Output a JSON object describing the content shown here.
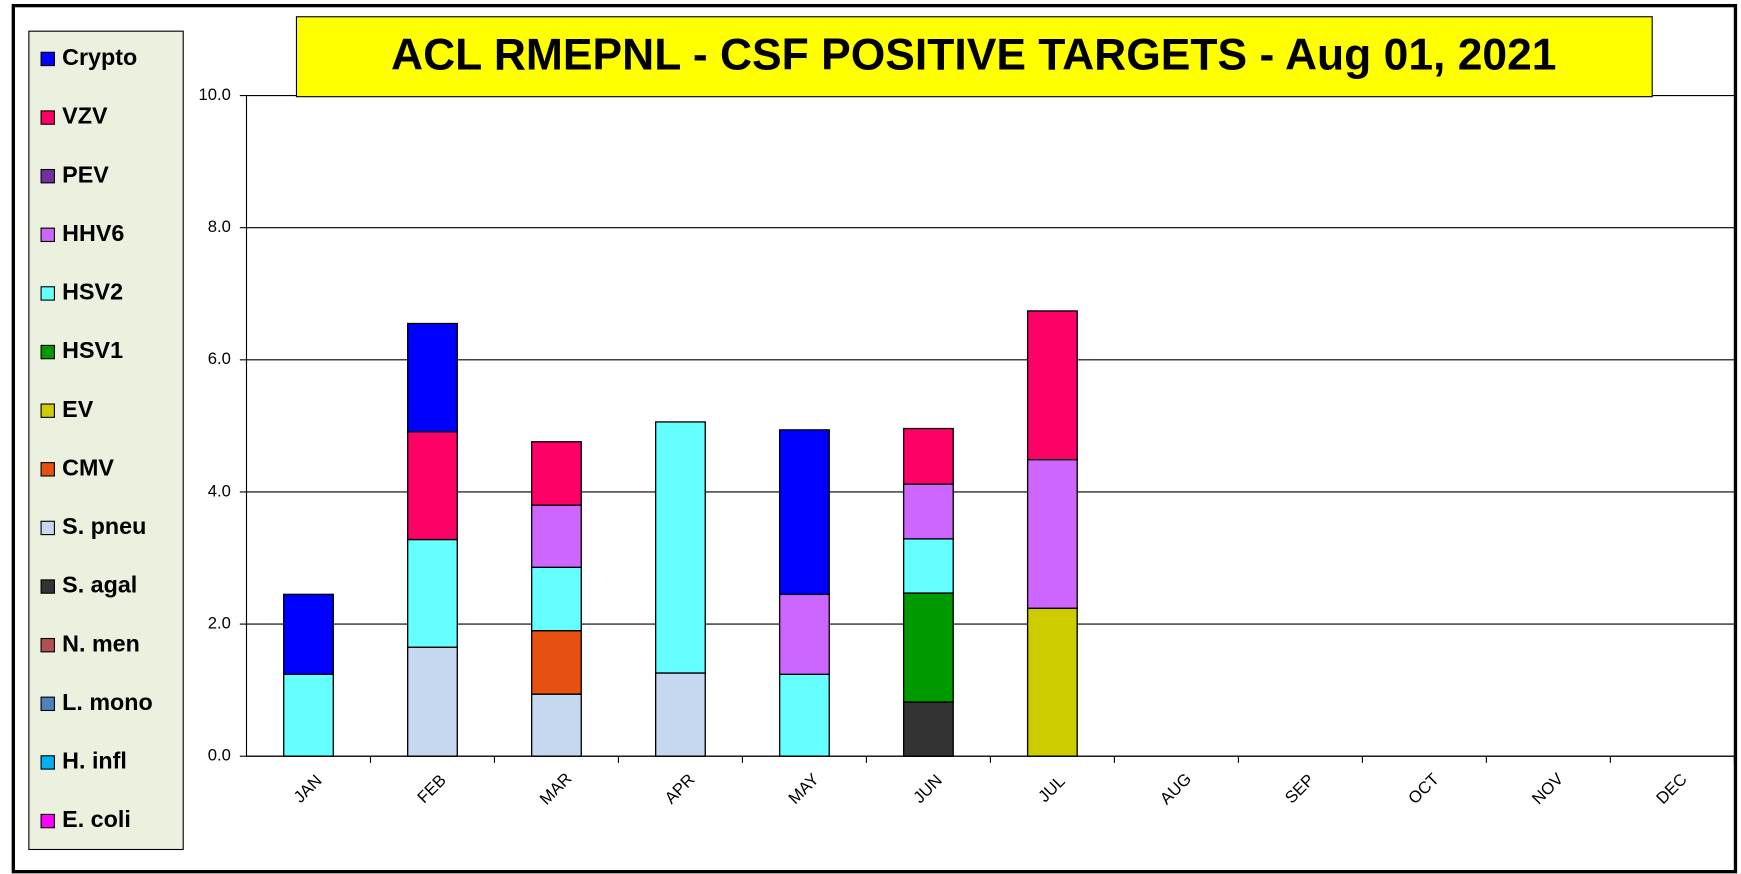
{
  "chart_data": {
    "type": "stacked_bar",
    "title": "ACL RMEPNL - CSF POSITIVE TARGETS - Aug 01, 2021",
    "categories": [
      "JAN",
      "FEB",
      "MAR",
      "APR",
      "MAY",
      "JUN",
      "JUL",
      "AUG",
      "SEP",
      "OCT",
      "NOV",
      "DEC"
    ],
    "series": [
      {
        "name": "E. coli",
        "color": "#ff00ff",
        "values": [
          0,
          0,
          0,
          0,
          0,
          0,
          0,
          0,
          0,
          0,
          0,
          0
        ]
      },
      {
        "name": "H. infl",
        "color": "#00b0f0",
        "values": [
          0,
          0,
          0,
          0,
          0,
          0,
          0,
          0,
          0,
          0,
          0,
          0
        ]
      },
      {
        "name": "L. mono",
        "color": "#4f81bd",
        "values": [
          0,
          0,
          0,
          0,
          0,
          0,
          0,
          0,
          0,
          0,
          0,
          0
        ]
      },
      {
        "name": "N. men",
        "color": "#b05050",
        "values": [
          0,
          0,
          0,
          0,
          0,
          0,
          0,
          0,
          0,
          0,
          0,
          0
        ]
      },
      {
        "name": "S. agal",
        "color": "#333333",
        "values": [
          0,
          0,
          0,
          0,
          0,
          0.82,
          0,
          0,
          0,
          0,
          0,
          0
        ]
      },
      {
        "name": "S. pneu",
        "color": "#c6d9f0",
        "values": [
          0,
          1.65,
          0.94,
          1.26,
          0,
          0,
          0,
          0,
          0,
          0,
          0,
          0
        ]
      },
      {
        "name": "CMV",
        "color": "#e65010",
        "values": [
          0,
          0,
          0.96,
          0,
          0,
          0,
          0,
          0,
          0,
          0,
          0,
          0
        ]
      },
      {
        "name": "EV",
        "color": "#cccc00",
        "values": [
          0,
          0,
          0,
          0,
          0,
          0,
          2.24,
          0,
          0,
          0,
          0,
          0
        ]
      },
      {
        "name": "HSV1",
        "color": "#009900",
        "values": [
          0,
          0,
          0,
          0,
          0,
          1.65,
          0,
          0,
          0,
          0,
          0,
          0
        ]
      },
      {
        "name": "HSV2",
        "color": "#66ffff",
        "values": [
          1.24,
          1.63,
          0.96,
          3.8,
          1.24,
          0.82,
          0,
          0,
          0,
          0,
          0,
          0
        ]
      },
      {
        "name": "HHV6",
        "color": "#cc66ff",
        "values": [
          0,
          0,
          0.94,
          0,
          1.21,
          0.83,
          2.25,
          0,
          0,
          0,
          0,
          0
        ]
      },
      {
        "name": "PEV",
        "color": "#7030a0",
        "values": [
          0,
          0,
          0,
          0,
          0,
          0,
          0,
          0,
          0,
          0,
          0,
          0
        ]
      },
      {
        "name": "VZV",
        "color": "#ff0066",
        "values": [
          0,
          1.63,
          0.96,
          0,
          0,
          0.84,
          2.25,
          0,
          0,
          0,
          0,
          0
        ]
      },
      {
        "name": "Crypto",
        "color": "#0000ff",
        "values": [
          1.21,
          1.64,
          0,
          0,
          2.49,
          0,
          0,
          0,
          0,
          0,
          0,
          0
        ]
      }
    ],
    "ylim": [
      0,
      10
    ],
    "yticks": [
      {
        "value": 0,
        "label": "0.0"
      },
      {
        "value": 2,
        "label": "2.0"
      },
      {
        "value": 4,
        "label": "4.0"
      },
      {
        "value": 6,
        "label": "6.0"
      },
      {
        "value": 8,
        "label": "8.0"
      },
      {
        "value": 10,
        "label": "10.0"
      }
    ],
    "grid": true
  }
}
